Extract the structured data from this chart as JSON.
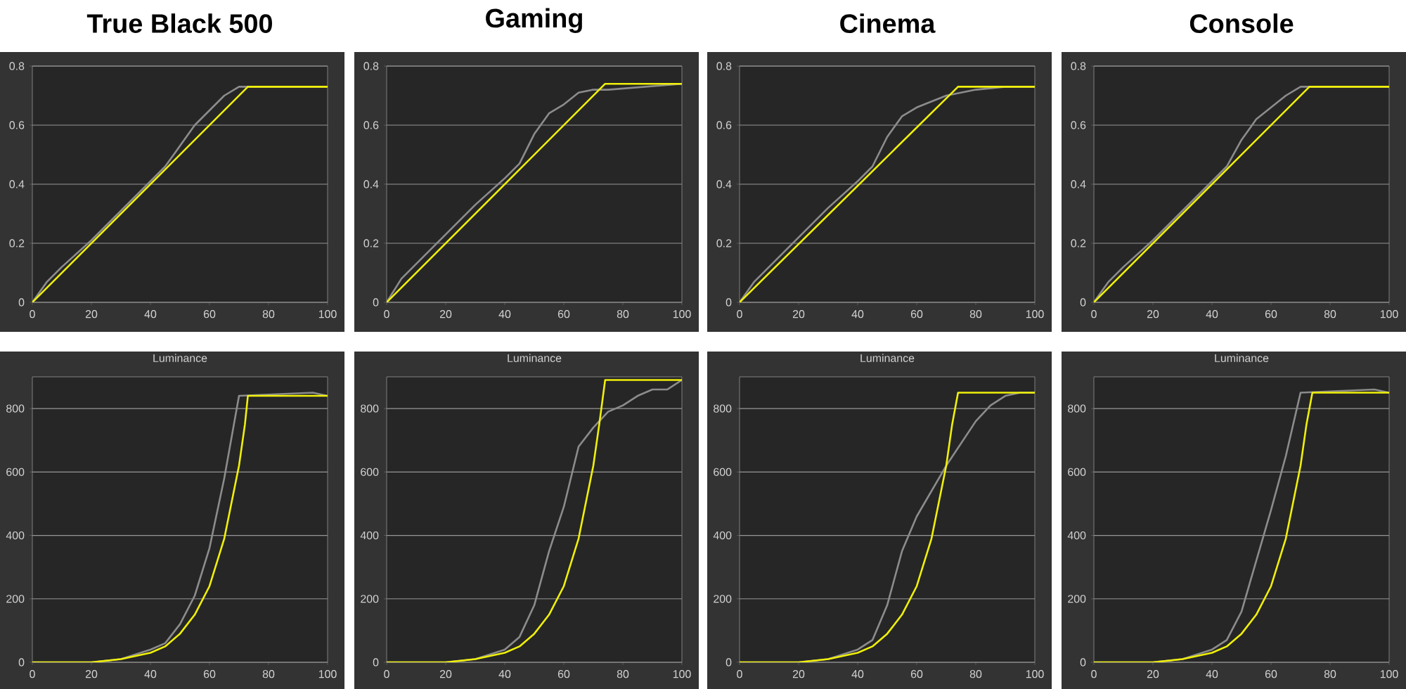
{
  "chart_data": [
    {
      "type": "line",
      "title": "True Black 500",
      "xlim": [
        0,
        100
      ],
      "ylim": [
        0,
        0.8
      ],
      "xticks": [
        0,
        20,
        40,
        60,
        80,
        100
      ],
      "yticks": [
        0,
        0.2,
        0.4,
        0.6,
        0.8
      ],
      "grid": "y",
      "series": [
        {
          "color": "#8c8c8c",
          "x": [
            0,
            5,
            10,
            20,
            30,
            40,
            45,
            50,
            55,
            60,
            65,
            70,
            100
          ],
          "values": [
            0,
            0.07,
            0.12,
            0.21,
            0.31,
            0.41,
            0.46,
            0.53,
            0.6,
            0.65,
            0.7,
            0.73,
            0.73
          ]
        },
        {
          "color": "#f0f00a",
          "x": [
            0,
            73,
            100
          ],
          "values": [
            0,
            0.73,
            0.73
          ]
        }
      ]
    },
    {
      "type": "line",
      "title": "Gaming",
      "xlim": [
        0,
        100
      ],
      "ylim": [
        0,
        0.8
      ],
      "xticks": [
        0,
        20,
        40,
        60,
        80,
        100
      ],
      "yticks": [
        0,
        0.2,
        0.4,
        0.6,
        0.8
      ],
      "grid": "y",
      "series": [
        {
          "color": "#8c8c8c",
          "x": [
            0,
            5,
            10,
            20,
            30,
            40,
            45,
            50,
            55,
            60,
            65,
            70,
            75,
            100
          ],
          "values": [
            0,
            0.08,
            0.13,
            0.23,
            0.33,
            0.42,
            0.47,
            0.57,
            0.64,
            0.67,
            0.71,
            0.72,
            0.72,
            0.74
          ]
        },
        {
          "color": "#f0f00a",
          "x": [
            0,
            74,
            100
          ],
          "values": [
            0,
            0.74,
            0.74
          ]
        }
      ]
    },
    {
      "type": "line",
      "title": "Cinema",
      "xlim": [
        0,
        100
      ],
      "ylim": [
        0,
        0.8
      ],
      "xticks": [
        0,
        20,
        40,
        60,
        80,
        100
      ],
      "yticks": [
        0,
        0.2,
        0.4,
        0.6,
        0.8
      ],
      "grid": "y",
      "series": [
        {
          "color": "#8c8c8c",
          "x": [
            0,
            5,
            10,
            20,
            30,
            40,
            45,
            50,
            55,
            60,
            65,
            70,
            75,
            80,
            90,
            100
          ],
          "values": [
            0,
            0.07,
            0.12,
            0.22,
            0.32,
            0.41,
            0.46,
            0.56,
            0.63,
            0.66,
            0.68,
            0.7,
            0.71,
            0.72,
            0.73,
            0.73
          ]
        },
        {
          "color": "#f0f00a",
          "x": [
            0,
            74,
            100
          ],
          "values": [
            0,
            0.73,
            0.73
          ]
        }
      ]
    },
    {
      "type": "line",
      "title": "Console",
      "xlim": [
        0,
        100
      ],
      "ylim": [
        0,
        0.8
      ],
      "xticks": [
        0,
        20,
        40,
        60,
        80,
        100
      ],
      "yticks": [
        0,
        0.2,
        0.4,
        0.6,
        0.8
      ],
      "grid": "y",
      "series": [
        {
          "color": "#8c8c8c",
          "x": [
            0,
            5,
            10,
            20,
            30,
            40,
            45,
            50,
            55,
            60,
            65,
            70,
            100
          ],
          "values": [
            0,
            0.07,
            0.12,
            0.21,
            0.31,
            0.41,
            0.46,
            0.55,
            0.62,
            0.66,
            0.7,
            0.73,
            0.73
          ]
        },
        {
          "color": "#f0f00a",
          "x": [
            0,
            73,
            100
          ],
          "values": [
            0,
            0.73,
            0.73
          ]
        }
      ]
    },
    {
      "type": "line",
      "title": "Luminance",
      "xlim": [
        0,
        100
      ],
      "ylim": [
        0,
        900
      ],
      "xticks": [
        0,
        20,
        40,
        60,
        80,
        100
      ],
      "yticks": [
        0,
        200,
        400,
        600,
        800
      ],
      "grid": "y",
      "series": [
        {
          "color": "#8c8c8c",
          "x": [
            0,
            20,
            30,
            40,
            45,
            50,
            55,
            60,
            65,
            70,
            95,
            100
          ],
          "values": [
            0,
            0,
            10,
            40,
            60,
            120,
            210,
            360,
            580,
            840,
            850,
            840
          ]
        },
        {
          "color": "#f0f00a",
          "x": [
            0,
            20,
            30,
            40,
            45,
            50,
            55,
            60,
            65,
            70,
            72,
            73,
            100
          ],
          "values": [
            0,
            0,
            10,
            30,
            50,
            90,
            150,
            240,
            390,
            620,
            750,
            840,
            840
          ]
        }
      ]
    },
    {
      "type": "line",
      "title": "Luminance",
      "xlim": [
        0,
        100
      ],
      "ylim": [
        0,
        900
      ],
      "xticks": [
        0,
        20,
        40,
        60,
        80,
        100
      ],
      "yticks": [
        0,
        200,
        400,
        600,
        800
      ],
      "grid": "y",
      "series": [
        {
          "color": "#8c8c8c",
          "x": [
            0,
            20,
            30,
            40,
            45,
            50,
            55,
            60,
            65,
            70,
            75,
            80,
            85,
            90,
            95,
            100
          ],
          "values": [
            0,
            0,
            10,
            40,
            80,
            180,
            350,
            490,
            680,
            740,
            790,
            810,
            840,
            860,
            860,
            890
          ]
        },
        {
          "color": "#f0f00a",
          "x": [
            0,
            20,
            30,
            40,
            45,
            50,
            55,
            60,
            65,
            70,
            72,
            74,
            100
          ],
          "values": [
            0,
            0,
            10,
            30,
            50,
            90,
            150,
            240,
            390,
            620,
            750,
            890,
            890
          ]
        }
      ]
    },
    {
      "type": "line",
      "title": "Luminance",
      "xlim": [
        0,
        100
      ],
      "ylim": [
        0,
        900
      ],
      "xticks": [
        0,
        20,
        40,
        60,
        80,
        100
      ],
      "yticks": [
        0,
        200,
        400,
        600,
        800
      ],
      "grid": "y",
      "series": [
        {
          "color": "#8c8c8c",
          "x": [
            0,
            20,
            30,
            40,
            45,
            50,
            55,
            60,
            65,
            70,
            75,
            80,
            85,
            90,
            95,
            100
          ],
          "values": [
            0,
            0,
            10,
            40,
            70,
            180,
            350,
            460,
            540,
            620,
            690,
            760,
            810,
            840,
            850,
            850
          ]
        },
        {
          "color": "#f0f00a",
          "x": [
            0,
            20,
            30,
            40,
            45,
            50,
            55,
            60,
            65,
            70,
            72,
            74,
            100
          ],
          "values": [
            0,
            0,
            10,
            30,
            50,
            90,
            150,
            240,
            390,
            620,
            750,
            850,
            850
          ]
        }
      ]
    },
    {
      "type": "line",
      "title": "Luminance",
      "xlim": [
        0,
        100
      ],
      "ylim": [
        0,
        900
      ],
      "xticks": [
        0,
        20,
        40,
        60,
        80,
        100
      ],
      "yticks": [
        0,
        200,
        400,
        600,
        800
      ],
      "grid": "y",
      "series": [
        {
          "color": "#8c8c8c",
          "x": [
            0,
            20,
            30,
            40,
            45,
            50,
            55,
            60,
            65,
            70,
            95,
            100
          ],
          "values": [
            0,
            0,
            10,
            40,
            70,
            160,
            320,
            480,
            650,
            850,
            860,
            850
          ]
        },
        {
          "color": "#f0f00a",
          "x": [
            0,
            20,
            30,
            40,
            45,
            50,
            55,
            60,
            65,
            70,
            72,
            74,
            100
          ],
          "values": [
            0,
            0,
            10,
            30,
            50,
            90,
            150,
            240,
            390,
            620,
            750,
            850,
            850
          ]
        }
      ]
    }
  ]
}
